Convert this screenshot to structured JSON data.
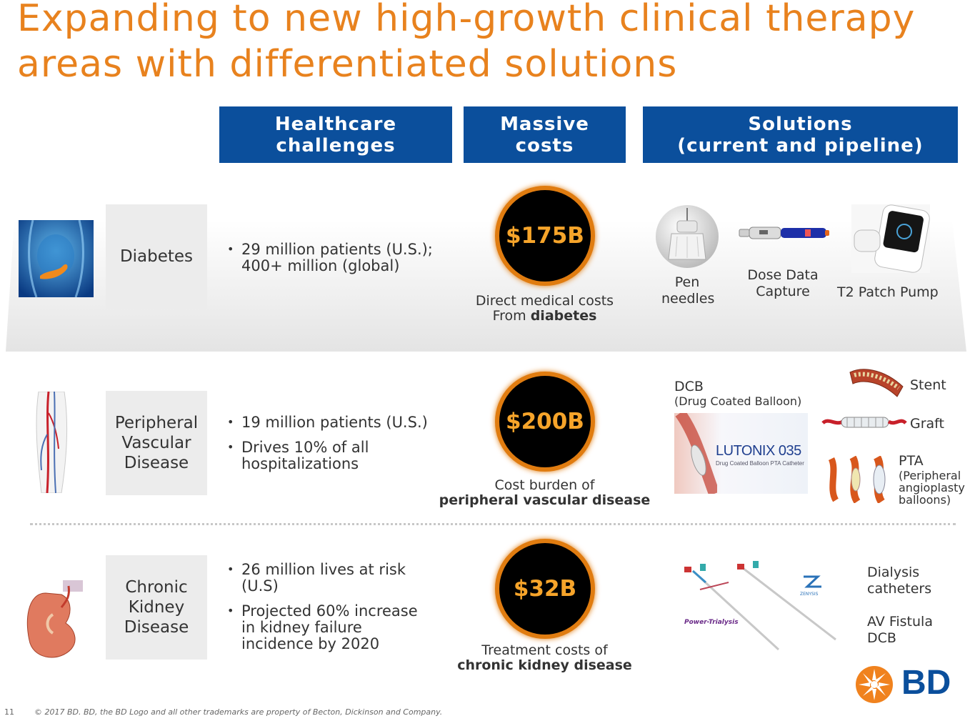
{
  "title": {
    "line1": "Expanding to new high-growth clinical therapy",
    "line2": "areas with differentiated solutions"
  },
  "columns": {
    "challenges": [
      "Healthcare",
      "challenges"
    ],
    "costs": [
      "Massive",
      "costs"
    ],
    "solutions": [
      "Solutions",
      "(current and pipeline)"
    ]
  },
  "rows": {
    "diabetes": {
      "label": [
        "Diabetes"
      ],
      "bullets": [
        [
          "29 million patients (U.S.);",
          "400+ million (global)"
        ]
      ],
      "cost": "$175B",
      "cost_caption": "Direct medical costs",
      "cost_caption_prefix": "From ",
      "cost_caption_bold": "diabetes",
      "solutions": {
        "pen": [
          "Pen",
          "needles"
        ],
        "dose": [
          "Dose Data",
          "Capture"
        ],
        "pump": [
          "T2 Patch Pump"
        ]
      }
    },
    "pvd": {
      "label": [
        "Peripheral",
        "Vascular",
        "Disease"
      ],
      "bullets": [
        [
          "19 million patients (U.S.)"
        ],
        [
          "Drives 10% of all",
          "hospitalizations"
        ]
      ],
      "cost": "$200B",
      "cost_caption": "Cost burden of",
      "cost_caption_bold": "peripheral vascular disease",
      "solutions": {
        "dcb": "DCB",
        "dcb_sub": "(Drug Coated Balloon)",
        "lutonix": "LUTONIX 035",
        "lutonix_sub": "Drug Coated Balloon PTA Catheter",
        "stent": "Stent",
        "graft": "Graft",
        "pta": "PTA",
        "pta_sub": [
          "(Peripheral",
          "angioplasty",
          "balloons)"
        ]
      }
    },
    "ckd": {
      "label": [
        "Chronic",
        "Kidney",
        "Disease"
      ],
      "bullets": [
        [
          "26 million lives at risk",
          "(U.S)"
        ],
        [
          "Projected 60% increase",
          "in kidney failure",
          "incidence by 2020"
        ]
      ],
      "cost": "$32B",
      "cost_caption": "Treatment costs of",
      "cost_caption_bold": "chronic kidney disease",
      "solutions": {
        "dialysis": [
          "Dialysis",
          "catheters"
        ],
        "av": [
          "AV Fistula",
          "DCB"
        ],
        "powertrialysis": "Power-Trialysis",
        "zenysis": "ZENYSIS"
      }
    }
  },
  "logo": {
    "text": "BD"
  },
  "footer": {
    "page": "11",
    "copyright": "© 2017 BD. BD, the BD Logo and all other trademarks are property of Becton, Dickinson and Company."
  },
  "colors": {
    "title": "#e8821e",
    "header_bg": "#0b4f9c",
    "circle_ring": "#e07c10",
    "circle_text": "#f6a42a"
  },
  "icons": [
    "pancreas-anatomy-image",
    "leg-vessels-image",
    "kidney-image",
    "pen-needle-image",
    "dose-capture-pen-image",
    "patch-pump-image",
    "stent-image",
    "graft-image",
    "pta-balloon-image",
    "dialysis-catheter-image",
    "bd-starburst-icon"
  ]
}
